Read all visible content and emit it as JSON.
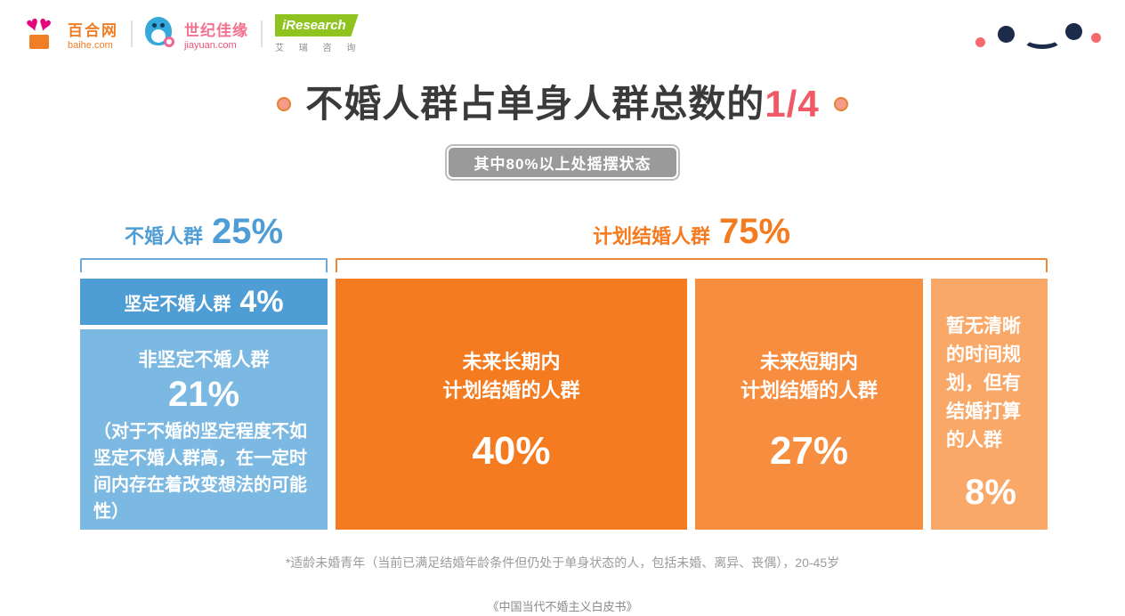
{
  "brand_bar": {
    "baihe": {
      "name": "百合网",
      "domain": "baihe.com"
    },
    "jiayuan": {
      "name": "世纪佳缘",
      "domain": "jiayuan.com"
    },
    "iresearch": {
      "name": "iResearch",
      "subtitle": "艾 瑞 咨 询"
    }
  },
  "title": {
    "prefix": "不婚人群占单身人群总数的",
    "highlight": "1/4"
  },
  "badge": "其中80%以上处摇摆状态",
  "chart_data": {
    "type": "bar",
    "title": "不婚人群占单身人群总数的1/4",
    "subtitle": "其中80%以上处摇摆状态",
    "unit": "% of single population (适龄未婚青年)",
    "groups": [
      {
        "label": "不婚人群",
        "value": 25,
        "value_label": "25%",
        "color": "#4e9dd5",
        "segments": [
          {
            "label": "坚定不婚人群",
            "value": 4,
            "value_label": "4%",
            "color": "#4e9dd5"
          },
          {
            "label": "非坚定不婚人群",
            "value": 21,
            "value_label": "21%",
            "color": "#7cb9e2",
            "note": "（对于不婚的坚定程度不如坚定不婚人群高，在一定时间内存在着改变想法的可能性）"
          }
        ]
      },
      {
        "label": "计划结婚人群",
        "value": 75,
        "value_label": "75%",
        "color": "#f57b20",
        "segments": [
          {
            "label": "未来长期内计划结婚的人群",
            "label_line1": "未来长期内",
            "label_line2": "计划结婚的人群",
            "value": 40,
            "value_label": "40%",
            "color": "#f57b20"
          },
          {
            "label": "未来短期内计划结婚的人群",
            "label_line1": "未来短期内",
            "label_line2": "计划结婚的人群",
            "value": 27,
            "value_label": "27%",
            "color": "#f78d3f"
          },
          {
            "label": "暂无清晰的时间规划，但有结婚打算的人群",
            "value": 8,
            "value_label": "8%",
            "color": "#f9a868"
          }
        ]
      }
    ]
  },
  "footnote": "*适龄未婚青年（当前已满足结婚年龄条件但仍处于单身状态的人，包括未婚、离异、丧偶），20-45岁",
  "source": "《中国当代不婚主义白皮书》",
  "colors": {
    "blue_dark": "#4e9dd5",
    "blue_light": "#7cb9e2",
    "orange_dark": "#f57b20",
    "orange_mid": "#f78d3f",
    "orange_light": "#f9a868",
    "title_text": "#3a3a3a",
    "title_highlight": "#f25966",
    "badge_bg": "#9a9a9a",
    "smiley_navy": "#1c2b4a",
    "smiley_pink": "#f4696b"
  },
  "icons": {
    "baihe_logo": "double-heart-with-orange-block",
    "jiayuan_logo": "blue-bird-with-pink-bow",
    "iresearch_logo": "green-flag-wordmark",
    "smiley": "two-navy-eyes-smile-with-pink-dots"
  }
}
